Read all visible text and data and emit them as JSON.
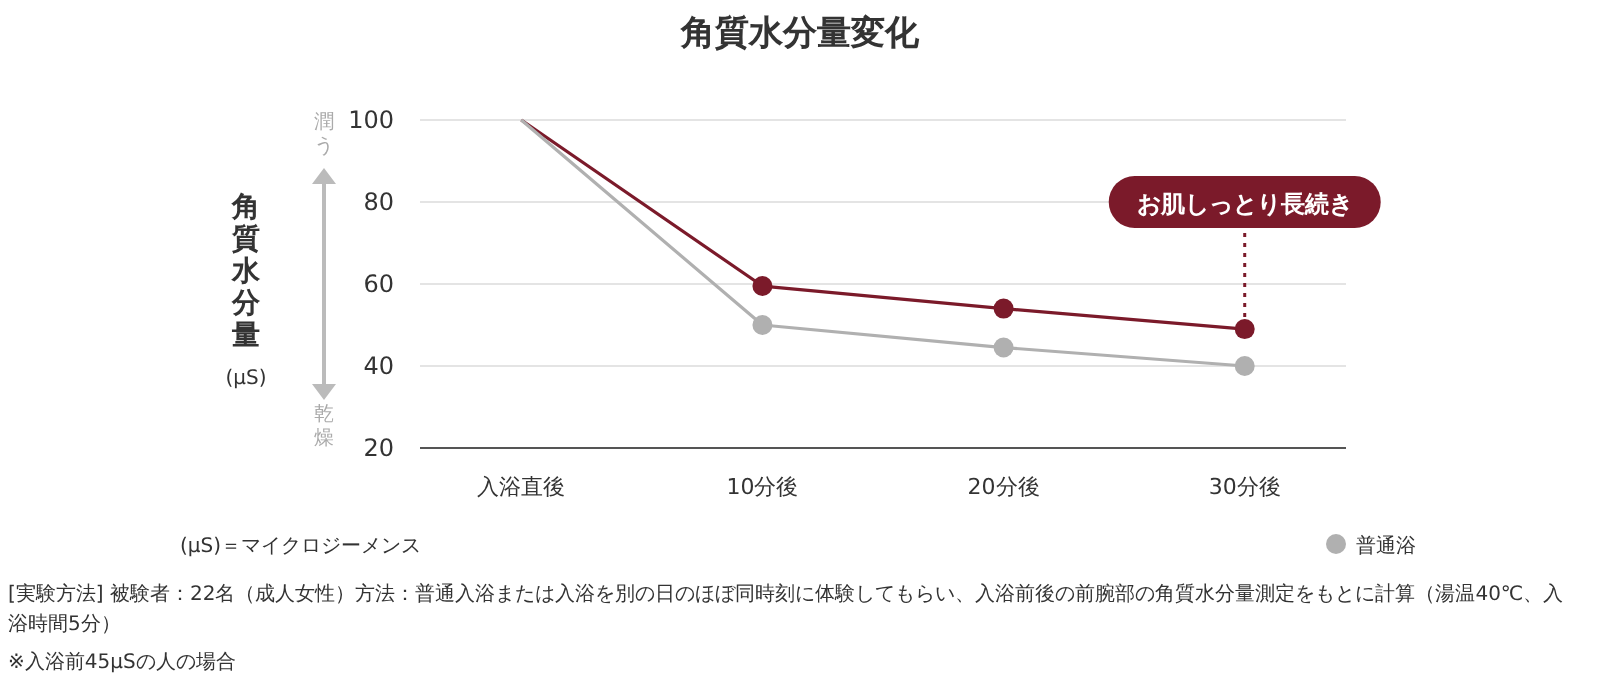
{
  "chart_data": {
    "type": "line",
    "title": "角質水分量変化",
    "ylabel": "角質水分量",
    "categories": [
      "入浴直後",
      "10分後",
      "20分後",
      "30分後"
    ],
    "series": [
      {
        "color": "#7b1a2a",
        "values": [
          100,
          59.5,
          54,
          49
        ]
      },
      {
        "name": "普通浴",
        "color": "#b0b0b0",
        "values": [
          100,
          50,
          44.5,
          40
        ]
      }
    ],
    "ylim": [
      20,
      100
    ],
    "yticks": [
      20,
      40,
      60,
      80,
      100
    ],
    "grid": "y",
    "marker": "circle",
    "line_style": "solid",
    "legend": "bottom right",
    "annotations": [
      "潤う",
      "乾燥",
      "(μS)",
      {
        "text": "お肌しっとり長続き",
        "x": "30分後",
        "y": 49
      },
      "(μS)＝マイクロジーメンス",
      "[実験方法] 被験者：22名（成人女性）方法：普通入浴または入浴を別の日のほぼ同時刻に体験してもらい、入浴前後の前腕部の角質水分量測定をもとに計算（湯温40℃、入浴時間5分）",
      "※入浴前45μSの人の場合"
    ]
  }
}
